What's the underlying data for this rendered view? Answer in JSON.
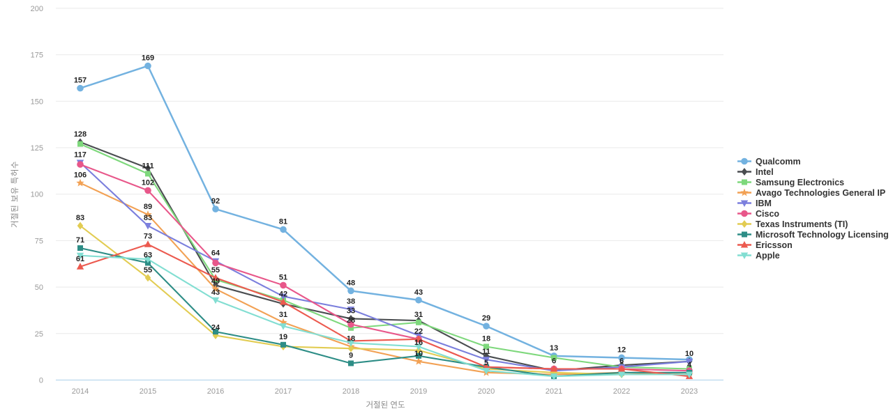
{
  "chart_data": {
    "type": "line",
    "title": "",
    "xlabel": "거절된 연도",
    "ylabel": "거절된 보유 특허수",
    "x": [
      2014,
      2015,
      2016,
      2017,
      2018,
      2019,
      2020,
      2021,
      2022,
      2023
    ],
    "ylim": [
      0,
      200
    ],
    "yticks": [
      0,
      25,
      50,
      75,
      100,
      125,
      150,
      175,
      200
    ],
    "grid": "horizontal-only",
    "legend_position": "right",
    "colors": {
      "background": "#ffffff",
      "grid": "#e9e9e9",
      "baseline": "#abd0ea",
      "tick_text": "#999999",
      "point_label": "#222222",
      "legend_text": "#333333"
    },
    "series": [
      {
        "name": "Qualcomm",
        "color": "#73b2e0",
        "marker": "circle",
        "values": [
          157,
          169,
          92,
          81,
          48,
          43,
          29,
          13,
          12,
          11
        ],
        "labeled_years": [
          2014,
          2015,
          2016,
          2017,
          2018,
          2019,
          2020,
          2021,
          2022
        ]
      },
      {
        "name": "Intel",
        "color": "#4a4d50",
        "marker": "diamond",
        "values": [
          128,
          114,
          51,
          41,
          33,
          32,
          13,
          5,
          8,
          10
        ],
        "labeled_years": [
          2014,
          2018,
          2023
        ]
      },
      {
        "name": "Samsung Electronics",
        "color": "#7ed87c",
        "marker": "square",
        "values": [
          127,
          111,
          54,
          43,
          28,
          31,
          18,
          12,
          7,
          6
        ],
        "labeled_years": [
          2015,
          2018,
          2019,
          2020
        ]
      },
      {
        "name": "Avago Technologies General IP",
        "color": "#f2a154",
        "marker": "star",
        "values": [
          106,
          89,
          49,
          31,
          18,
          10,
          4,
          3,
          4,
          3
        ],
        "labeled_years": [
          2014,
          2015,
          2016,
          2017,
          2018,
          2019
        ]
      },
      {
        "name": "IBM",
        "color": "#7b7fdd",
        "marker": "triangle-down",
        "values": [
          117,
          83,
          64,
          45,
          38,
          24,
          11,
          5,
          7,
          10
        ],
        "labeled_years": [
          2014,
          2015,
          2016,
          2018,
          2020
        ]
      },
      {
        "name": "Cisco",
        "color": "#e8578a",
        "marker": "circle",
        "values": [
          116,
          102,
          63,
          51,
          30,
          22,
          7,
          6,
          6,
          5
        ],
        "labeled_years": [
          2015,
          2017,
          2019,
          2022
        ]
      },
      {
        "name": "Texas Instruments (TI)",
        "color": "#e2cc52",
        "marker": "diamond",
        "values": [
          83,
          55,
          24,
          18,
          17,
          16,
          6,
          4,
          3,
          3
        ],
        "labeled_years": [
          2014,
          2015,
          2016,
          2019
        ]
      },
      {
        "name": "Microsoft Technology Licensing",
        "color": "#2d8d86",
        "marker": "square",
        "values": [
          71,
          63,
          26,
          19,
          9,
          13,
          7,
          2,
          4,
          4
        ],
        "labeled_years": [
          2014,
          2015,
          2017,
          2018,
          2023
        ]
      },
      {
        "name": "Ericsson",
        "color": "#ec5a4f",
        "marker": "triangle-up",
        "values": [
          61,
          73,
          55,
          42,
          21,
          22,
          7,
          6,
          6,
          2
        ],
        "labeled_years": [
          2014,
          2015,
          2016,
          2017,
          2021
        ]
      },
      {
        "name": "Apple",
        "color": "#82ded2",
        "marker": "triangle-down",
        "values": [
          67,
          65,
          43,
          29,
          20,
          18,
          5,
          2,
          3,
          3
        ],
        "labeled_years": [
          2016,
          2020
        ]
      }
    ]
  },
  "layout_hints": {
    "x_tick_row_y": "565",
    "note": "horizontal gridlines only, legend markers are line+shape"
  }
}
